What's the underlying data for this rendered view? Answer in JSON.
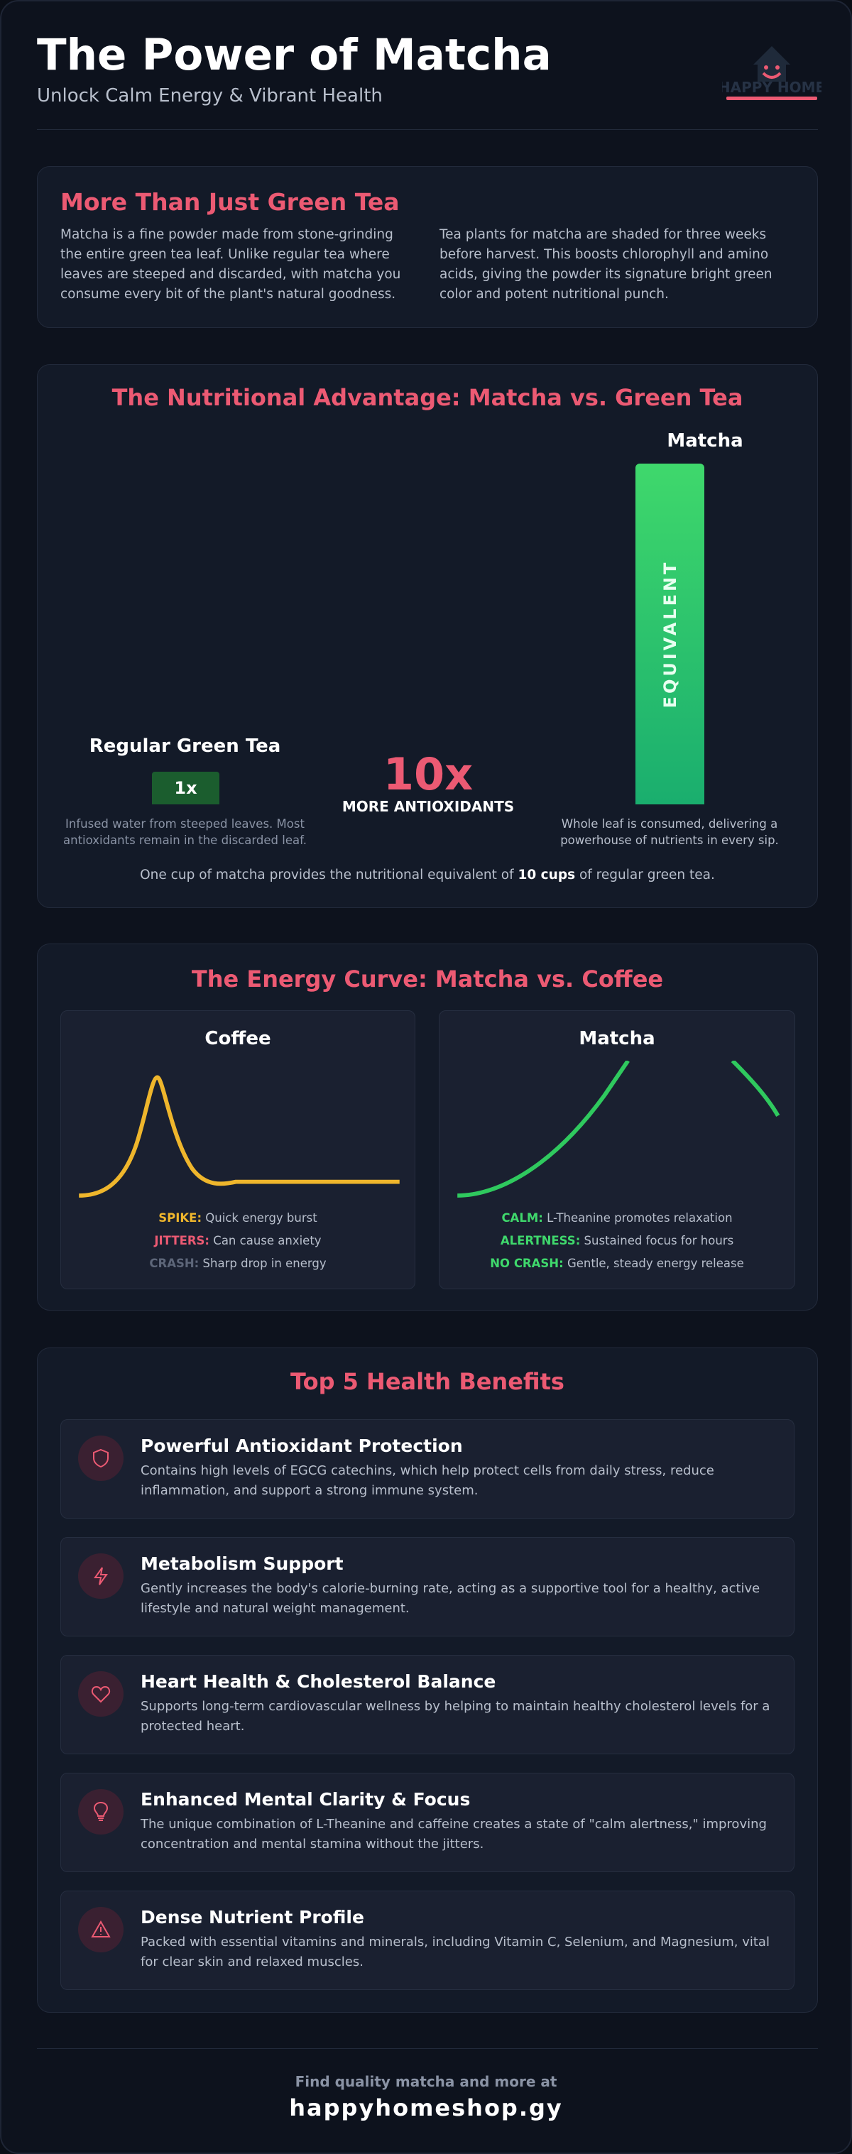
{
  "header": {
    "title": "The Power of Matcha",
    "subtitle": "Unlock Calm Energy & Vibrant Health",
    "logo": "HAPPY HOME"
  },
  "intro": {
    "title": "More Than Just Green Tea",
    "paragraphs": [
      "Matcha is a fine powder made from stone-grinding the entire green tea leaf. Unlike regular tea where leaves are steeped and discarded, with matcha you consume every bit of the plant's natural goodness.",
      "Tea plants for matcha are shaded for three weeks before harvest. This boosts chlorophyll and amino acids, giving the powder its signature bright green color and potent nutritional punch."
    ]
  },
  "nutrition": {
    "title": "The Nutritional Advantage: Matcha vs. Green Tea",
    "tea": {
      "label": "Regular Green Tea",
      "badge": "1x",
      "note": "Infused water from steeped leaves. Most antioxidants remain in the discarded leaf."
    },
    "multiplier": "10x",
    "multiplier_label": "MORE ANTIOXIDANTS",
    "matcha": {
      "label": "Matcha",
      "bar_text": "EQUIVALENT",
      "note": "Whole leaf is consumed, delivering a powerhouse of nutrients in every sip."
    },
    "summary": {
      "before": "One cup of matcha provides the nutritional equivalent of",
      "bold": "10 cups",
      "after": "of regular green tea."
    }
  },
  "energy": {
    "title": "The Energy Curve: Matcha vs. Coffee",
    "panels": [
      {
        "title": "Coffee",
        "items": [
          {
            "label": "SPIKE:",
            "text": "Quick energy burst"
          },
          {
            "label": "JITTERS:",
            "text": "Can cause anxiety"
          },
          {
            "label": "CRASH:",
            "text": "Sharp drop in energy"
          }
        ]
      },
      {
        "title": "Matcha",
        "items": [
          {
            "label": "CALM:",
            "text": "L-Theanine promotes relaxation"
          },
          {
            "label": "ALERTNESS:",
            "text": "Sustained focus for hours"
          },
          {
            "label": "NO CRASH:",
            "text": "Gentle, steady energy release"
          }
        ]
      }
    ]
  },
  "benefits": {
    "title": "Top 5 Health Benefits",
    "items": [
      {
        "title": "Powerful Antioxidant Protection",
        "text": "Contains high levels of EGCG catechins, which help protect cells from daily stress, reduce inflammation, and support a strong immune system."
      },
      {
        "title": "Metabolism Support",
        "text": "Gently increases the body's calorie-burning rate, acting as a supportive tool for a healthy, active lifestyle and natural weight management."
      },
      {
        "title": "Heart Health & Cholesterol Balance",
        "text": "Supports long-term cardiovascular wellness by helping to maintain healthy cholesterol levels for a protected heart."
      },
      {
        "title": "Enhanced Mental Clarity & Focus",
        "text": "The unique combination of L-Theanine and caffeine creates a state of \"calm alertness,\" improving concentration and mental stamina without the jitters."
      },
      {
        "title": "Dense Nutrient Profile",
        "text": "Packed with essential vitamins and minerals, including Vitamin C, Selenium, and Magnesium, vital for clear skin and relaxed muscles."
      }
    ]
  },
  "footer": {
    "line": "Find quality matcha and more at",
    "site": "happyhomeshop.gy"
  }
}
